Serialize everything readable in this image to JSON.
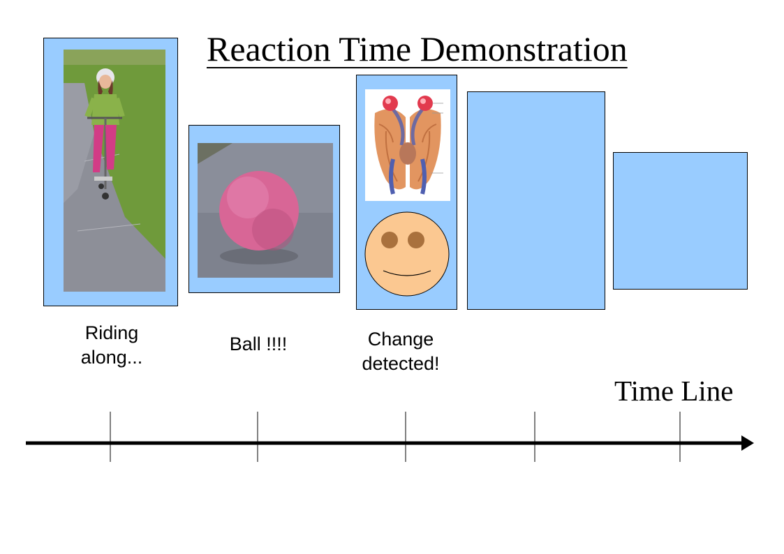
{
  "title": "Reaction Time Demonstration",
  "panels": [
    {
      "caption": "Riding\nalong...",
      "image": "girl-on-scooter-photo"
    },
    {
      "caption": "Ball !!!!",
      "image": "pink-ball-photo"
    },
    {
      "caption": "Change\ndetected!",
      "image": "brain-diagram-and-smiley-face"
    },
    {
      "caption": "",
      "image": ""
    },
    {
      "caption": "",
      "image": ""
    }
  ],
  "timeline": {
    "label": "Time Line",
    "tick_count": 5
  },
  "colors": {
    "panel_fill": "#99ccff",
    "face_fill": "#fbc891",
    "eye_fill": "#a9713d",
    "ball_fill": "#d86696"
  }
}
